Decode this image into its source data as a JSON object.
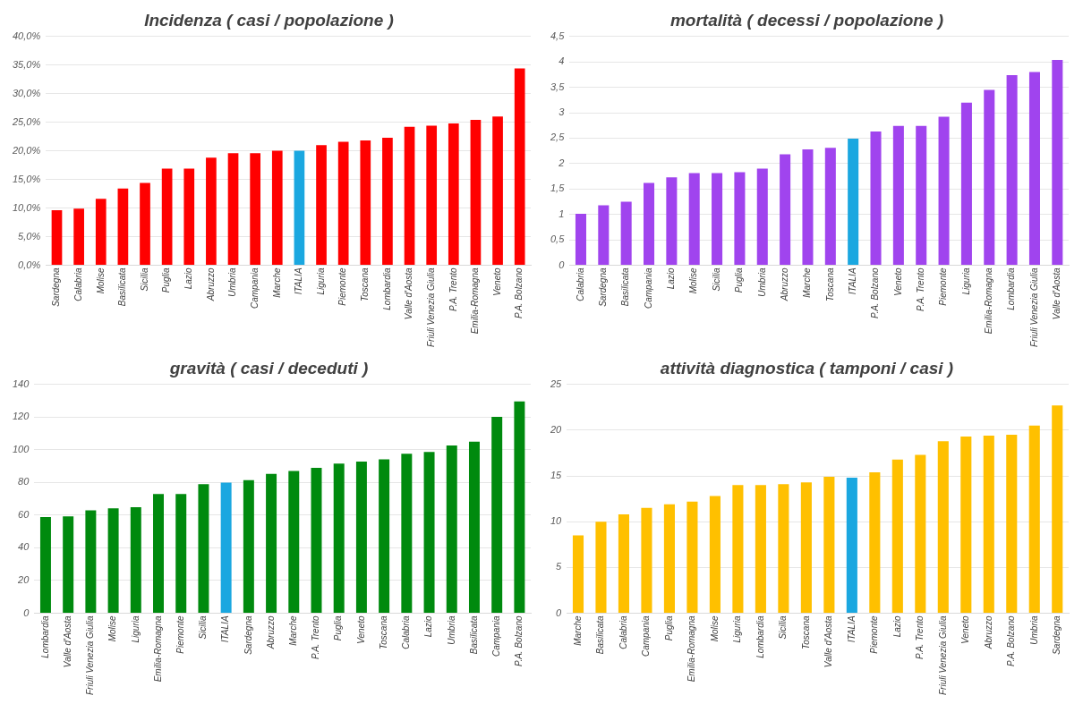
{
  "chart_data": [
    {
      "type": "bar",
      "title": "Incidenza ( casi / popolazione )",
      "categories": [
        "Sardegna",
        "Calabria",
        "Molise",
        "Basilicata",
        "Sicilia",
        "Puglia",
        "Lazio",
        "Abruzzo",
        "Umbria",
        "Campania",
        "Marche",
        "ITALIA",
        "Liguria",
        "Piemonte",
        "Toscana",
        "Lombardia",
        "Valle d'Aosta",
        "Friuli Venezia Giulia",
        "P.A. Trento",
        "Emilia-Romagna",
        "Veneto",
        "P.A. Bolzano"
      ],
      "values": [
        9.6,
        9.9,
        11.6,
        13.4,
        14.4,
        16.9,
        16.9,
        18.8,
        19.6,
        19.6,
        20.0,
        20.0,
        21.0,
        21.6,
        21.8,
        22.3,
        24.2,
        24.4,
        24.8,
        25.4,
        26.0,
        34.4
      ],
      "colors": [
        "#ff0000",
        "#ff0000",
        "#ff0000",
        "#ff0000",
        "#ff0000",
        "#ff0000",
        "#ff0000",
        "#ff0000",
        "#ff0000",
        "#ff0000",
        "#ff0000",
        "#1aa7e0",
        "#ff0000",
        "#ff0000",
        "#ff0000",
        "#ff0000",
        "#ff0000",
        "#ff0000",
        "#ff0000",
        "#ff0000",
        "#ff0000",
        "#ff0000"
      ],
      "ylim": [
        0,
        40
      ],
      "yticks": [
        {
          "value": 0,
          "label": "0,0%"
        },
        {
          "value": 5,
          "label": "5,0%"
        },
        {
          "value": 10,
          "label": "10,0%"
        },
        {
          "value": 15,
          "label": "15,0%"
        },
        {
          "value": 20,
          "label": "20,0%"
        },
        {
          "value": 25,
          "label": "25,0%"
        },
        {
          "value": 30,
          "label": "30,0%"
        },
        {
          "value": 35,
          "label": "35,0%"
        },
        {
          "value": 40,
          "label": "40,0%"
        }
      ],
      "grid": "y"
    },
    {
      "type": "bar",
      "title": "mortalità ( decessi / popolazione )",
      "categories": [
        "Calabria",
        "Sardegna",
        "Basilicata",
        "Campania",
        "Lazio",
        "Molise",
        "Sicilia",
        "Puglia",
        "Umbria",
        "Abruzzo",
        "Marche",
        "Toscana",
        "ITALIA",
        "P.A. Bolzano",
        "Veneto",
        "P.A. Trento",
        "Piemonte",
        "Liguria",
        "Emilia-Romagna",
        "Lombardia",
        "Friuli Venezia Giulia",
        "Valle d'Aosta"
      ],
      "values": [
        1.01,
        1.18,
        1.25,
        1.62,
        1.73,
        1.81,
        1.81,
        1.83,
        1.9,
        2.18,
        2.28,
        2.31,
        2.49,
        2.63,
        2.74,
        2.74,
        2.92,
        3.2,
        3.45,
        3.74,
        3.8,
        4.04
      ],
      "colors": [
        "#a044ee",
        "#a044ee",
        "#a044ee",
        "#a044ee",
        "#a044ee",
        "#a044ee",
        "#a044ee",
        "#a044ee",
        "#a044ee",
        "#a044ee",
        "#a044ee",
        "#a044ee",
        "#1aa7e0",
        "#a044ee",
        "#a044ee",
        "#a044ee",
        "#a044ee",
        "#a044ee",
        "#a044ee",
        "#a044ee",
        "#a044ee",
        "#a044ee"
      ],
      "ylim": [
        0,
        4.5
      ],
      "yticks": [
        0,
        {
          "value": 0.5,
          "label": "0,5"
        },
        1,
        {
          "value": 1.5,
          "label": "1,5"
        },
        2,
        {
          "value": 2.5,
          "label": "2,5"
        },
        3,
        {
          "value": 3.5,
          "label": "3,5"
        },
        4,
        {
          "value": 4.5,
          "label": "4,5"
        }
      ],
      "grid": "y"
    },
    {
      "type": "bar",
      "title": "gravità ( casi / deceduti )",
      "categories": [
        "Lombardia",
        "Valle d'Aosta",
        "Friuli Venezia Giulia",
        "Molise",
        "Liguria",
        "Emilia-Romagna",
        "Piemonte",
        "Sicilia",
        "ITALIA",
        "Sardegna",
        "Abruzzo",
        "Marche",
        "P.A. Trento",
        "Puglia",
        "Veneto",
        "Toscana",
        "Calabria",
        "Lazio",
        "Umbria",
        "Basilicata",
        "Campania",
        "P.A. Bolzano"
      ],
      "values": [
        58.8,
        59.3,
        62.9,
        64.2,
        64.9,
        73,
        73,
        78.9,
        79.9,
        81.4,
        85.2,
        87,
        89,
        91.6,
        92.8,
        94.1,
        97.6,
        98.7,
        102.7,
        105,
        120.2,
        129.6
      ],
      "colors": [
        "#008a0e",
        "#008a0e",
        "#008a0e",
        "#008a0e",
        "#008a0e",
        "#008a0e",
        "#008a0e",
        "#008a0e",
        "#1aa7e0",
        "#008a0e",
        "#008a0e",
        "#008a0e",
        "#008a0e",
        "#008a0e",
        "#008a0e",
        "#008a0e",
        "#008a0e",
        "#008a0e",
        "#008a0e",
        "#008a0e",
        "#008a0e",
        "#008a0e"
      ],
      "ylim": [
        0,
        140
      ],
      "yticks": [
        0,
        20,
        40,
        60,
        80,
        100,
        120,
        140
      ],
      "grid": "y"
    },
    {
      "type": "bar",
      "title": "attività diagnostica ( tamponi / casi )",
      "categories": [
        "Marche",
        "Basilicata",
        "Calabria",
        "Campania",
        "Puglia",
        "Emilia-Romagna",
        "Molise",
        "Liguria",
        "Lombardia",
        "Sicilia",
        "Toscana",
        "Valle d'Aosta",
        "ITALIA",
        "Piemonte",
        "Lazio",
        "P.A. Trento",
        "Friuli Venezia Giulia",
        "Veneto",
        "Abruzzo",
        "P.A. Bolzano",
        "Umbria",
        "Sardegna"
      ],
      "values": [
        8.5,
        10.0,
        10.8,
        11.5,
        11.9,
        12.2,
        12.8,
        14.0,
        14.0,
        14.1,
        14.3,
        14.9,
        14.8,
        15.4,
        16.8,
        17.3,
        18.8,
        19.3,
        19.4,
        19.5,
        20.5,
        22.7
      ],
      "colors": [
        "#ffc000",
        "#ffc000",
        "#ffc000",
        "#ffc000",
        "#ffc000",
        "#ffc000",
        "#ffc000",
        "#ffc000",
        "#ffc000",
        "#ffc000",
        "#ffc000",
        "#ffc000",
        "#1aa7e0",
        "#ffc000",
        "#ffc000",
        "#ffc000",
        "#ffc000",
        "#ffc000",
        "#ffc000",
        "#ffc000",
        "#ffc000",
        "#ffc000"
      ],
      "ylim": [
        0,
        25
      ],
      "yticks": [
        0,
        5,
        10,
        15,
        20,
        25
      ],
      "grid": "y"
    }
  ]
}
